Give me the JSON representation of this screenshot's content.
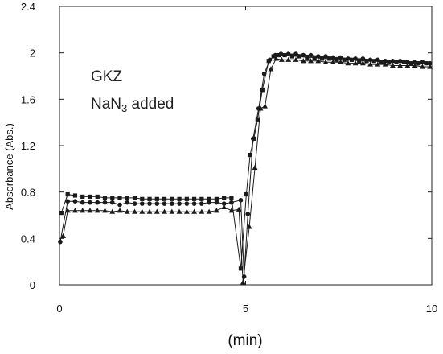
{
  "chart_data": {
    "type": "line",
    "title": "",
    "xlabel": "(min)",
    "ylabel": "Absorbance (Abs.)",
    "xlim": [
      0,
      10
    ],
    "ylim": [
      0,
      2.4
    ],
    "x_ticks": [
      0,
      5,
      10
    ],
    "y_ticks": [
      0,
      0.4,
      0.8,
      1.2,
      1.6,
      2,
      2.4
    ],
    "x_tick_labels": [
      "0",
      "5",
      "10"
    ],
    "y_tick_labels": [
      "0",
      "0.4",
      "0.8",
      "1.2",
      "1.6",
      "2",
      "2.4"
    ],
    "grid": false,
    "legend": "none",
    "annotations": [
      "GKZ",
      "NaN3 added"
    ],
    "series": [
      {
        "marker": "square",
        "points": [
          [
            0.05,
            0.62
          ],
          [
            0.22,
            0.78
          ],
          [
            0.42,
            0.77
          ],
          [
            0.62,
            0.76
          ],
          [
            0.82,
            0.76
          ],
          [
            1.02,
            0.76
          ],
          [
            1.22,
            0.75
          ],
          [
            1.42,
            0.75
          ],
          [
            1.62,
            0.75
          ],
          [
            1.82,
            0.75
          ],
          [
            2.02,
            0.75
          ],
          [
            2.22,
            0.74
          ],
          [
            2.42,
            0.74
          ],
          [
            2.62,
            0.74
          ],
          [
            2.82,
            0.74
          ],
          [
            3.02,
            0.74
          ],
          [
            3.22,
            0.74
          ],
          [
            3.42,
            0.74
          ],
          [
            3.62,
            0.74
          ],
          [
            3.82,
            0.74
          ],
          [
            4.02,
            0.74
          ],
          [
            4.22,
            0.74
          ],
          [
            4.42,
            0.75
          ],
          [
            4.62,
            0.75
          ],
          [
            4.87,
            0.14
          ],
          [
            5.02,
            0.78
          ],
          [
            5.12,
            1.12
          ],
          [
            5.22,
            1.26
          ],
          [
            5.32,
            1.42
          ],
          [
            5.45,
            1.68
          ],
          [
            5.62,
            1.93
          ],
          [
            5.75,
            1.97
          ],
          [
            5.9,
            1.98
          ],
          [
            6.05,
            1.98
          ],
          [
            6.25,
            1.97
          ],
          [
            6.45,
            1.97
          ],
          [
            6.65,
            1.96
          ],
          [
            6.85,
            1.96
          ],
          [
            7.05,
            1.95
          ],
          [
            7.25,
            1.95
          ],
          [
            7.45,
            1.94
          ],
          [
            7.65,
            1.94
          ],
          [
            7.85,
            1.94
          ],
          [
            8.05,
            1.93
          ],
          [
            8.25,
            1.93
          ],
          [
            8.45,
            1.93
          ],
          [
            8.65,
            1.92
          ],
          [
            8.85,
            1.92
          ],
          [
            9.05,
            1.92
          ],
          [
            9.25,
            1.92
          ],
          [
            9.45,
            1.91
          ],
          [
            9.65,
            1.91
          ],
          [
            9.85,
            1.91
          ]
        ]
      },
      {
        "marker": "circle",
        "points": [
          [
            0.02,
            0.37
          ],
          [
            0.22,
            0.72
          ],
          [
            0.42,
            0.72
          ],
          [
            0.62,
            0.71
          ],
          [
            0.82,
            0.71
          ],
          [
            1.02,
            0.71
          ],
          [
            1.22,
            0.71
          ],
          [
            1.42,
            0.71
          ],
          [
            1.62,
            0.69
          ],
          [
            1.82,
            0.71
          ],
          [
            2.02,
            0.7
          ],
          [
            2.22,
            0.7
          ],
          [
            2.42,
            0.7
          ],
          [
            2.62,
            0.7
          ],
          [
            2.82,
            0.7
          ],
          [
            3.02,
            0.7
          ],
          [
            3.22,
            0.7
          ],
          [
            3.42,
            0.7
          ],
          [
            3.62,
            0.7
          ],
          [
            3.82,
            0.7
          ],
          [
            4.02,
            0.71
          ],
          [
            4.22,
            0.71
          ],
          [
            4.42,
            0.7
          ],
          [
            4.62,
            0.71
          ],
          [
            4.87,
            0.73
          ],
          [
            4.96,
            0.07
          ],
          [
            5.06,
            0.61
          ],
          [
            5.2,
            1.26
          ],
          [
            5.35,
            1.52
          ],
          [
            5.5,
            1.82
          ],
          [
            5.65,
            1.94
          ],
          [
            5.8,
            1.98
          ],
          [
            5.95,
            1.99
          ],
          [
            6.15,
            1.99
          ],
          [
            6.35,
            1.99
          ],
          [
            6.55,
            1.98
          ],
          [
            6.75,
            1.98
          ],
          [
            6.95,
            1.97
          ],
          [
            7.15,
            1.97
          ],
          [
            7.35,
            1.96
          ],
          [
            7.55,
            1.96
          ],
          [
            7.75,
            1.95
          ],
          [
            7.95,
            1.95
          ],
          [
            8.15,
            1.95
          ],
          [
            8.35,
            1.94
          ],
          [
            8.55,
            1.94
          ],
          [
            8.75,
            1.93
          ],
          [
            8.95,
            1.93
          ],
          [
            9.15,
            1.93
          ],
          [
            9.35,
            1.92
          ],
          [
            9.55,
            1.92
          ],
          [
            9.75,
            1.92
          ],
          [
            9.95,
            1.91
          ]
        ]
      },
      {
        "marker": "triangle",
        "points": [
          [
            0.1,
            0.42
          ],
          [
            0.22,
            0.64
          ],
          [
            0.42,
            0.64
          ],
          [
            0.62,
            0.64
          ],
          [
            0.82,
            0.64
          ],
          [
            1.02,
            0.64
          ],
          [
            1.22,
            0.64
          ],
          [
            1.42,
            0.63
          ],
          [
            1.62,
            0.64
          ],
          [
            1.82,
            0.63
          ],
          [
            2.02,
            0.63
          ],
          [
            2.22,
            0.63
          ],
          [
            2.42,
            0.63
          ],
          [
            2.62,
            0.63
          ],
          [
            2.82,
            0.63
          ],
          [
            3.02,
            0.63
          ],
          [
            3.22,
            0.63
          ],
          [
            3.42,
            0.63
          ],
          [
            3.62,
            0.63
          ],
          [
            3.82,
            0.63
          ],
          [
            4.02,
            0.63
          ],
          [
            4.22,
            0.64
          ],
          [
            4.42,
            0.67
          ],
          [
            4.62,
            0.64
          ],
          [
            4.82,
            0.65
          ],
          [
            4.93,
            0.02
          ],
          [
            5.1,
            0.5
          ],
          [
            5.25,
            1.01
          ],
          [
            5.4,
            1.52
          ],
          [
            5.52,
            1.54
          ],
          [
            5.68,
            1.86
          ],
          [
            5.82,
            1.95
          ],
          [
            5.97,
            1.94
          ],
          [
            6.15,
            1.94
          ],
          [
            6.35,
            1.94
          ],
          [
            6.55,
            1.93
          ],
          [
            6.75,
            1.93
          ],
          [
            6.95,
            1.93
          ],
          [
            7.15,
            1.92
          ],
          [
            7.35,
            1.92
          ],
          [
            7.55,
            1.92
          ],
          [
            7.75,
            1.91
          ],
          [
            7.95,
            1.91
          ],
          [
            8.15,
            1.91
          ],
          [
            8.35,
            1.9
          ],
          [
            8.55,
            1.9
          ],
          [
            8.75,
            1.9
          ],
          [
            8.95,
            1.89
          ],
          [
            9.15,
            1.89
          ],
          [
            9.35,
            1.89
          ],
          [
            9.55,
            1.89
          ],
          [
            9.75,
            1.88
          ],
          [
            9.95,
            1.88
          ]
        ]
      }
    ]
  }
}
